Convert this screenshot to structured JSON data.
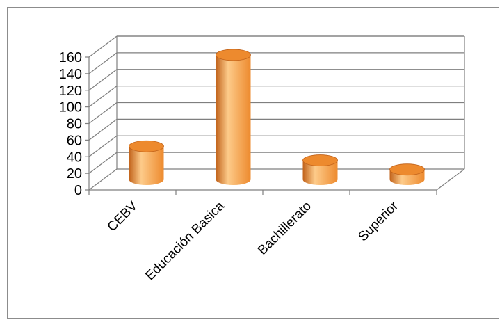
{
  "chart_data": {
    "type": "bar",
    "style": "3d-cylinder",
    "categories": [
      "CEBV",
      "Educación Basica",
      "Bachillerato",
      "Superior"
    ],
    "values": [
      40,
      150,
      23,
      12
    ],
    "ylim": [
      0,
      160
    ],
    "ytick_labels": [
      "0",
      "20",
      "40",
      "60",
      "80",
      "100",
      "120",
      "140",
      "160"
    ],
    "grid": true,
    "legend": "none",
    "colors": {
      "bar": "#ED8A2E",
      "bar_light": "#FDCB8A",
      "bar_dark": "#C1621A",
      "grid": "#7f7f7f"
    }
  }
}
